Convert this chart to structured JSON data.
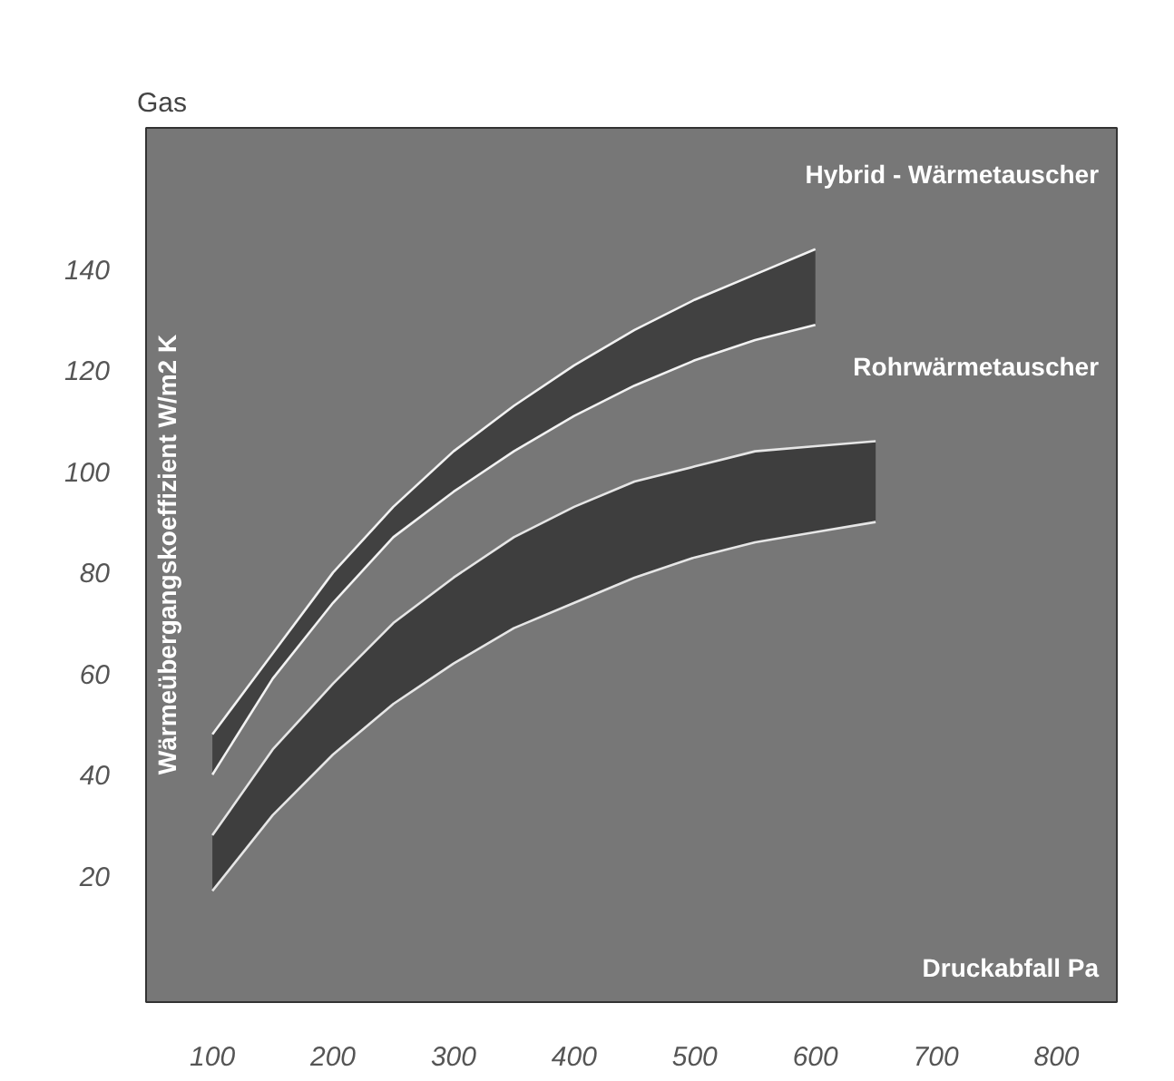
{
  "chart_data": {
    "type": "line",
    "title": "Gas",
    "xlabel": "Druckabfall Pa",
    "ylabel": "Wärmeübergangskoeffizient W/m2 K",
    "xlim": [
      45,
      850
    ],
    "ylim": [
      -5,
      168
    ],
    "xticks": [
      100,
      200,
      300,
      400,
      500,
      600,
      700,
      800
    ],
    "yticks": [
      20,
      40,
      60,
      80,
      100,
      120,
      140
    ],
    "grid": false,
    "marker": "none",
    "series": [
      {
        "name": "Hybrid - Wärmetauscher",
        "color": "#f2f2f2",
        "x": [
          100,
          150,
          200,
          250,
          300,
          350,
          400,
          450,
          500,
          550,
          600
        ],
        "values": [
          48,
          64,
          80,
          93,
          104,
          113,
          121,
          128,
          134,
          139,
          144
        ],
        "lower": [
          40,
          59,
          74,
          87,
          96,
          104,
          111,
          117,
          122,
          126,
          129
        ],
        "upper": [
          48,
          64,
          80,
          93,
          104,
          113,
          121,
          128,
          134,
          139,
          144
        ]
      },
      {
        "color": "#f2f2f2",
        "x": [
          100,
          150,
          200,
          250,
          300,
          350,
          400,
          450,
          500,
          550,
          600
        ],
        "values": [
          40,
          59,
          74,
          87,
          96,
          104,
          111,
          117,
          122,
          126,
          129
        ]
      },
      {
        "name": "Rohrwärmetauscher",
        "color": "#e6e6e6",
        "x": [
          100,
          150,
          200,
          250,
          300,
          350,
          400,
          450,
          500,
          550,
          600,
          650
        ],
        "values": [
          28,
          45,
          58,
          70,
          79,
          87,
          93,
          98,
          101,
          104,
          105,
          106
        ],
        "lower": [
          17,
          32,
          44,
          54,
          62,
          69,
          74,
          79,
          83,
          86,
          88,
          90
        ],
        "upper": [
          28,
          45,
          58,
          70,
          79,
          87,
          93,
          98,
          101,
          104,
          105,
          106
        ]
      },
      {
        "color": "#e6e6e6",
        "x": [
          100,
          150,
          200,
          250,
          300,
          350,
          400,
          450,
          500,
          550,
          600,
          650
        ],
        "values": [
          17,
          32,
          44,
          54,
          62,
          69,
          74,
          79,
          83,
          86,
          88,
          90
        ]
      }
    ]
  }
}
